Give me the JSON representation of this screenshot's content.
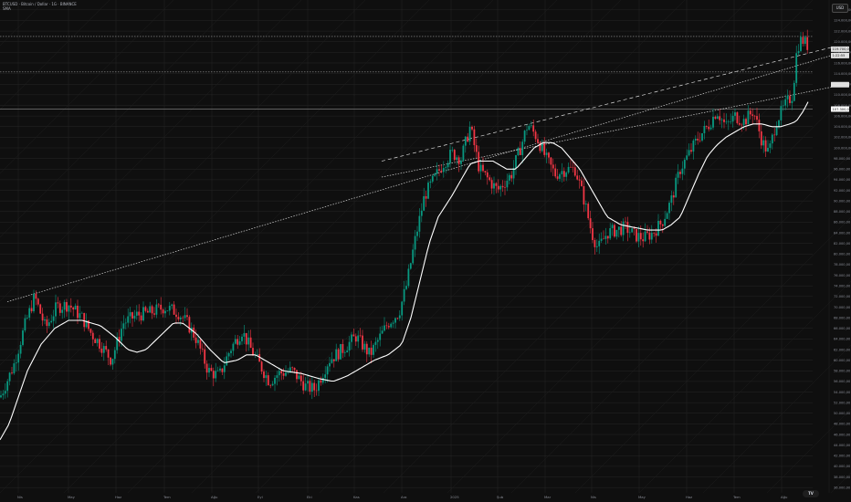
{
  "legend": {
    "symbol_line": "BTCUSD · Bitcoin / Dollar · 1G · BINANCE",
    "indicator_line": "SMA"
  },
  "currency_button": "USD",
  "logo_text": "TV",
  "colors": {
    "background": "#0f0f0f",
    "up": "#089981",
    "down": "#f23645",
    "ma": "#ffffff",
    "grid": "#262626",
    "axis_text": "#8a8d96"
  },
  "chart_data": {
    "type": "candlestick",
    "series": [
      {
        "name": "BTCUSD",
        "kind": "ohlc"
      },
      {
        "name": "SMA",
        "kind": "line"
      }
    ],
    "x_tick_labels": [
      "Nis",
      "May",
      "Haz",
      "Tem",
      "Ağu",
      "Eyl",
      "Eki",
      "Kas",
      "Ara",
      "2025",
      "Şub",
      "Mar",
      "Nis",
      "May",
      "Haz",
      "Tem",
      "Ağu"
    ],
    "y_tick_labels": [
      "126.000,00",
      "124.000,00",
      "122.000,00",
      "120.000,00",
      "118.000,00",
      "116.000,00",
      "114.000,00",
      "112.000,00",
      "110.000,00",
      "108.000,00",
      "106.000,00",
      "104.000,00",
      "102.000,00",
      "100.000,00",
      "98.000,00",
      "96.000,00",
      "94.000,00",
      "92.000,00",
      "90.000,00",
      "88.000,00",
      "86.000,00",
      "84.000,00",
      "82.000,00",
      "80.000,00",
      "78.000,00",
      "76.000,00",
      "74.000,00",
      "72.000,00",
      "70.000,00",
      "68.000,00",
      "66.000,00",
      "64.000,00",
      "62.000,00",
      "60.000,00",
      "58.000,00",
      "56.000,00",
      "54.000,00",
      "52.000,00",
      "50.000,00",
      "48.000,00",
      "46.000,00",
      "44.000,00",
      "42.000,00",
      "40.000,00",
      "38.000,00",
      "36.000,00"
    ],
    "ylim": [
      35000,
      127000
    ],
    "grid": true,
    "price_keypoints": [
      [
        0,
        53000
      ],
      [
        15,
        59000
      ],
      [
        28,
        67000
      ],
      [
        38,
        72000
      ],
      [
        50,
        66000
      ],
      [
        62,
        70000
      ],
      [
        75,
        70500
      ],
      [
        90,
        68000
      ],
      [
        100,
        65000
      ],
      [
        110,
        63000
      ],
      [
        122,
        60000
      ],
      [
        135,
        67000
      ],
      [
        150,
        68500
      ],
      [
        165,
        69000
      ],
      [
        180,
        70000
      ],
      [
        195,
        69000
      ],
      [
        205,
        67000
      ],
      [
        215,
        64000
      ],
      [
        228,
        58000
      ],
      [
        240,
        57000
      ],
      [
        252,
        62000
      ],
      [
        265,
        65500
      ],
      [
        275,
        62000
      ],
      [
        285,
        59000
      ],
      [
        295,
        56000
      ],
      [
        305,
        57500
      ],
      [
        320,
        58000
      ],
      [
        335,
        55000
      ],
      [
        345,
        54500
      ],
      [
        360,
        60000
      ],
      [
        375,
        62000
      ],
      [
        390,
        64500
      ],
      [
        405,
        61000
      ],
      [
        415,
        64000
      ],
      [
        425,
        67000
      ],
      [
        437,
        69000
      ],
      [
        445,
        74000
      ],
      [
        455,
        83000
      ],
      [
        465,
        91000
      ],
      [
        475,
        94000
      ],
      [
        485,
        97000
      ],
      [
        495,
        99000
      ],
      [
        505,
        98000
      ],
      [
        515,
        104000
      ],
      [
        525,
        96000
      ],
      [
        535,
        94000
      ],
      [
        545,
        92000
      ],
      [
        560,
        95000
      ],
      [
        570,
        100000
      ],
      [
        578,
        104500
      ],
      [
        588,
        102000
      ],
      [
        598,
        98000
      ],
      [
        608,
        95000
      ],
      [
        620,
        96000
      ],
      [
        630,
        96000
      ],
      [
        640,
        90000
      ],
      [
        648,
        84000
      ],
      [
        655,
        81000
      ],
      [
        665,
        84000
      ],
      [
        675,
        84500
      ],
      [
        685,
        85000
      ],
      [
        695,
        83500
      ],
      [
        705,
        83000
      ],
      [
        715,
        84000
      ],
      [
        725,
        86000
      ],
      [
        735,
        90000
      ],
      [
        745,
        96000
      ],
      [
        755,
        99000
      ],
      [
        765,
        102000
      ],
      [
        775,
        104000
      ],
      [
        785,
        107000
      ],
      [
        795,
        104000
      ],
      [
        805,
        106000
      ],
      [
        815,
        105000
      ],
      [
        825,
        107000
      ],
      [
        835,
        101000
      ],
      [
        842,
        99000
      ],
      [
        850,
        105000
      ],
      [
        860,
        108000
      ],
      [
        868,
        110000
      ],
      [
        873,
        119000
      ],
      [
        878,
        120500
      ],
      [
        886,
        119000
      ]
    ],
    "ma_keypoints": [
      [
        0,
        45000
      ],
      [
        10,
        48000
      ],
      [
        20,
        53000
      ],
      [
        30,
        58000
      ],
      [
        45,
        63000
      ],
      [
        60,
        66000
      ],
      [
        75,
        67500
      ],
      [
        90,
        67500
      ],
      [
        110,
        66500
      ],
      [
        125,
        64500
      ],
      [
        140,
        62000
      ],
      [
        150,
        61500
      ],
      [
        160,
        62000
      ],
      [
        175,
        64500
      ],
      [
        190,
        67000
      ],
      [
        200,
        67000
      ],
      [
        215,
        65000
      ],
      [
        230,
        62000
      ],
      [
        245,
        59500
      ],
      [
        260,
        60000
      ],
      [
        270,
        61000
      ],
      [
        280,
        61000
      ],
      [
        295,
        59500
      ],
      [
        310,
        58000
      ],
      [
        330,
        57500
      ],
      [
        350,
        56500
      ],
      [
        365,
        56000
      ],
      [
        380,
        57000
      ],
      [
        395,
        58500
      ],
      [
        410,
        60000
      ],
      [
        425,
        61000
      ],
      [
        440,
        63000
      ],
      [
        450,
        68000
      ],
      [
        460,
        75000
      ],
      [
        470,
        82000
      ],
      [
        480,
        87000
      ],
      [
        495,
        91000
      ],
      [
        505,
        94000
      ],
      [
        515,
        97000
      ],
      [
        525,
        97500
      ],
      [
        540,
        97500
      ],
      [
        555,
        96000
      ],
      [
        565,
        96000
      ],
      [
        575,
        98000
      ],
      [
        585,
        100000
      ],
      [
        595,
        101000
      ],
      [
        605,
        101000
      ],
      [
        615,
        100000
      ],
      [
        625,
        98000
      ],
      [
        635,
        96000
      ],
      [
        645,
        93000
      ],
      [
        655,
        90000
      ],
      [
        665,
        87000
      ],
      [
        680,
        85500
      ],
      [
        695,
        85000
      ],
      [
        710,
        84500
      ],
      [
        725,
        84500
      ],
      [
        735,
        85500
      ],
      [
        745,
        87000
      ],
      [
        755,
        91000
      ],
      [
        765,
        95000
      ],
      [
        775,
        98500
      ],
      [
        785,
        100500
      ],
      [
        795,
        102000
      ],
      [
        805,
        103000
      ],
      [
        815,
        104000
      ],
      [
        825,
        104500
      ],
      [
        835,
        104500
      ],
      [
        845,
        104000
      ],
      [
        855,
        104000
      ],
      [
        865,
        104500
      ],
      [
        872,
        105000
      ],
      [
        880,
        107000
      ],
      [
        886,
        109000
      ]
    ],
    "price_labels": [
      {
        "text": "119.700,00",
        "value": 118600
      },
      {
        "text": "1:22:55",
        "value": 117400
      },
      {
        "text": "",
        "value": 111900
      },
      {
        "text": "107.300,00",
        "value": 107300
      }
    ],
    "horizontal_levels": [
      {
        "value": 121000,
        "style": "dotted"
      },
      {
        "value": 114300,
        "style": "dotted"
      },
      {
        "value": 107300,
        "style": "solid-gray"
      }
    ],
    "trend_lines": [
      {
        "from": [
          "Nis",
          71000
        ],
        "to": [
          "end",
          117500
        ],
        "style": "dotted"
      },
      {
        "from": [
          "Ara",
          97500
        ],
        "to": [
          "end",
          119000
        ],
        "style": "dashed"
      },
      {
        "from": [
          "Ara",
          94500
        ],
        "to": [
          "end",
          111500
        ],
        "style": "dotted"
      }
    ]
  }
}
